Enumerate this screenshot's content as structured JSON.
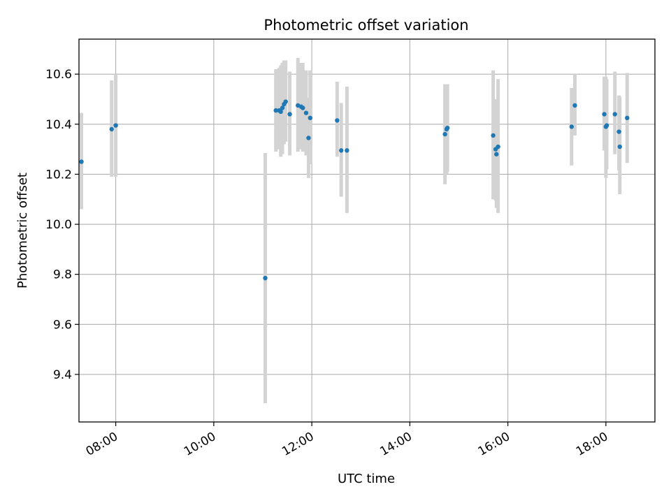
{
  "chart_data": {
    "type": "scatter",
    "title": "Photometric offset variation",
    "xlabel": "UTC time",
    "ylabel": "Photometric offset",
    "xlim": [
      "07:15",
      "19:00"
    ],
    "ylim": [
      9.21,
      10.74
    ],
    "x_ticks": [
      "08:00",
      "10:00",
      "12:00",
      "14:00",
      "16:00",
      "18:00"
    ],
    "y_ticks": [
      9.4,
      9.6,
      9.8,
      10.0,
      10.2,
      10.4,
      10.6
    ],
    "y_tick_labels": [
      "9.4",
      "9.6",
      "9.8",
      "10.0",
      "10.2",
      "10.4",
      "10.6"
    ],
    "grid": true,
    "point_color": "#1f77b4",
    "errorbar_color": "#d3d3d3",
    "series": [
      {
        "points": [
          {
            "x": "07:18",
            "y": 10.25,
            "lo": 10.06,
            "hi": 10.445
          },
          {
            "x": "07:55",
            "y": 10.38,
            "lo": 10.19,
            "hi": 10.575
          },
          {
            "x": "08:00",
            "y": 10.395,
            "lo": 10.19,
            "hi": 10.6
          },
          {
            "x": "11:03",
            "y": 9.785,
            "lo": 9.285,
            "hi": 10.285
          },
          {
            "x": "11:16",
            "y": 10.455,
            "lo": 10.29,
            "hi": 10.62
          },
          {
            "x": "11:20",
            "y": 10.455,
            "lo": 10.3,
            "hi": 10.625
          },
          {
            "x": "11:22",
            "y": 10.45,
            "lo": 10.27,
            "hi": 10.635
          },
          {
            "x": "11:24",
            "y": 10.465,
            "lo": 10.28,
            "hi": 10.645
          },
          {
            "x": "11:26",
            "y": 10.48,
            "lo": 10.32,
            "hi": 10.655
          },
          {
            "x": "11:28",
            "y": 10.49,
            "lo": 10.33,
            "hi": 10.655
          },
          {
            "x": "11:33",
            "y": 10.44,
            "lo": 10.275,
            "hi": 10.61
          },
          {
            "x": "11:43",
            "y": 10.475,
            "lo": 10.29,
            "hi": 10.665
          },
          {
            "x": "11:47",
            "y": 10.47,
            "lo": 10.3,
            "hi": 10.645
          },
          {
            "x": "11:49",
            "y": 10.465,
            "lo": 10.29,
            "hi": 10.645
          },
          {
            "x": "11:53",
            "y": 10.445,
            "lo": 10.275,
            "hi": 10.615
          },
          {
            "x": "11:56",
            "y": 10.345,
            "lo": 10.185,
            "hi": 10.505
          },
          {
            "x": "11:58",
            "y": 10.425,
            "lo": 10.24,
            "hi": 10.615
          },
          {
            "x": "12:31",
            "y": 10.415,
            "lo": 10.27,
            "hi": 10.57
          },
          {
            "x": "12:36",
            "y": 10.295,
            "lo": 10.11,
            "hi": 10.485
          },
          {
            "x": "12:43",
            "y": 10.295,
            "lo": 10.045,
            "hi": 10.55
          },
          {
            "x": "14:43",
            "y": 10.36,
            "lo": 10.16,
            "hi": 10.56
          },
          {
            "x": "14:45",
            "y": 10.38,
            "lo": 10.2,
            "hi": 10.56
          },
          {
            "x": "14:46",
            "y": 10.385,
            "lo": 10.21,
            "hi": 10.56
          },
          {
            "x": "15:42",
            "y": 10.355,
            "lo": 10.1,
            "hi": 10.615
          },
          {
            "x": "15:45",
            "y": 10.3,
            "lo": 10.095,
            "hi": 10.5
          },
          {
            "x": "15:46",
            "y": 10.28,
            "lo": 10.065,
            "hi": 10.495
          },
          {
            "x": "15:48",
            "y": 10.31,
            "lo": 10.045,
            "hi": 10.58
          },
          {
            "x": "17:18",
            "y": 10.39,
            "lo": 10.235,
            "hi": 10.545
          },
          {
            "x": "17:22",
            "y": 10.475,
            "lo": 10.355,
            "hi": 10.6
          },
          {
            "x": "17:58",
            "y": 10.44,
            "lo": 10.295,
            "hi": 10.59
          },
          {
            "x": "18:00",
            "y": 10.39,
            "lo": 10.185,
            "hi": 10.59
          },
          {
            "x": "18:01",
            "y": 10.395,
            "lo": 10.22,
            "hi": 10.58
          },
          {
            "x": "18:11",
            "y": 10.44,
            "lo": 10.28,
            "hi": 10.61
          },
          {
            "x": "18:16",
            "y": 10.37,
            "lo": 10.215,
            "hi": 10.515
          },
          {
            "x": "18:17",
            "y": 10.31,
            "lo": 10.12,
            "hi": 10.51
          },
          {
            "x": "18:26",
            "y": 10.425,
            "lo": 10.245,
            "hi": 10.605
          }
        ]
      }
    ]
  }
}
